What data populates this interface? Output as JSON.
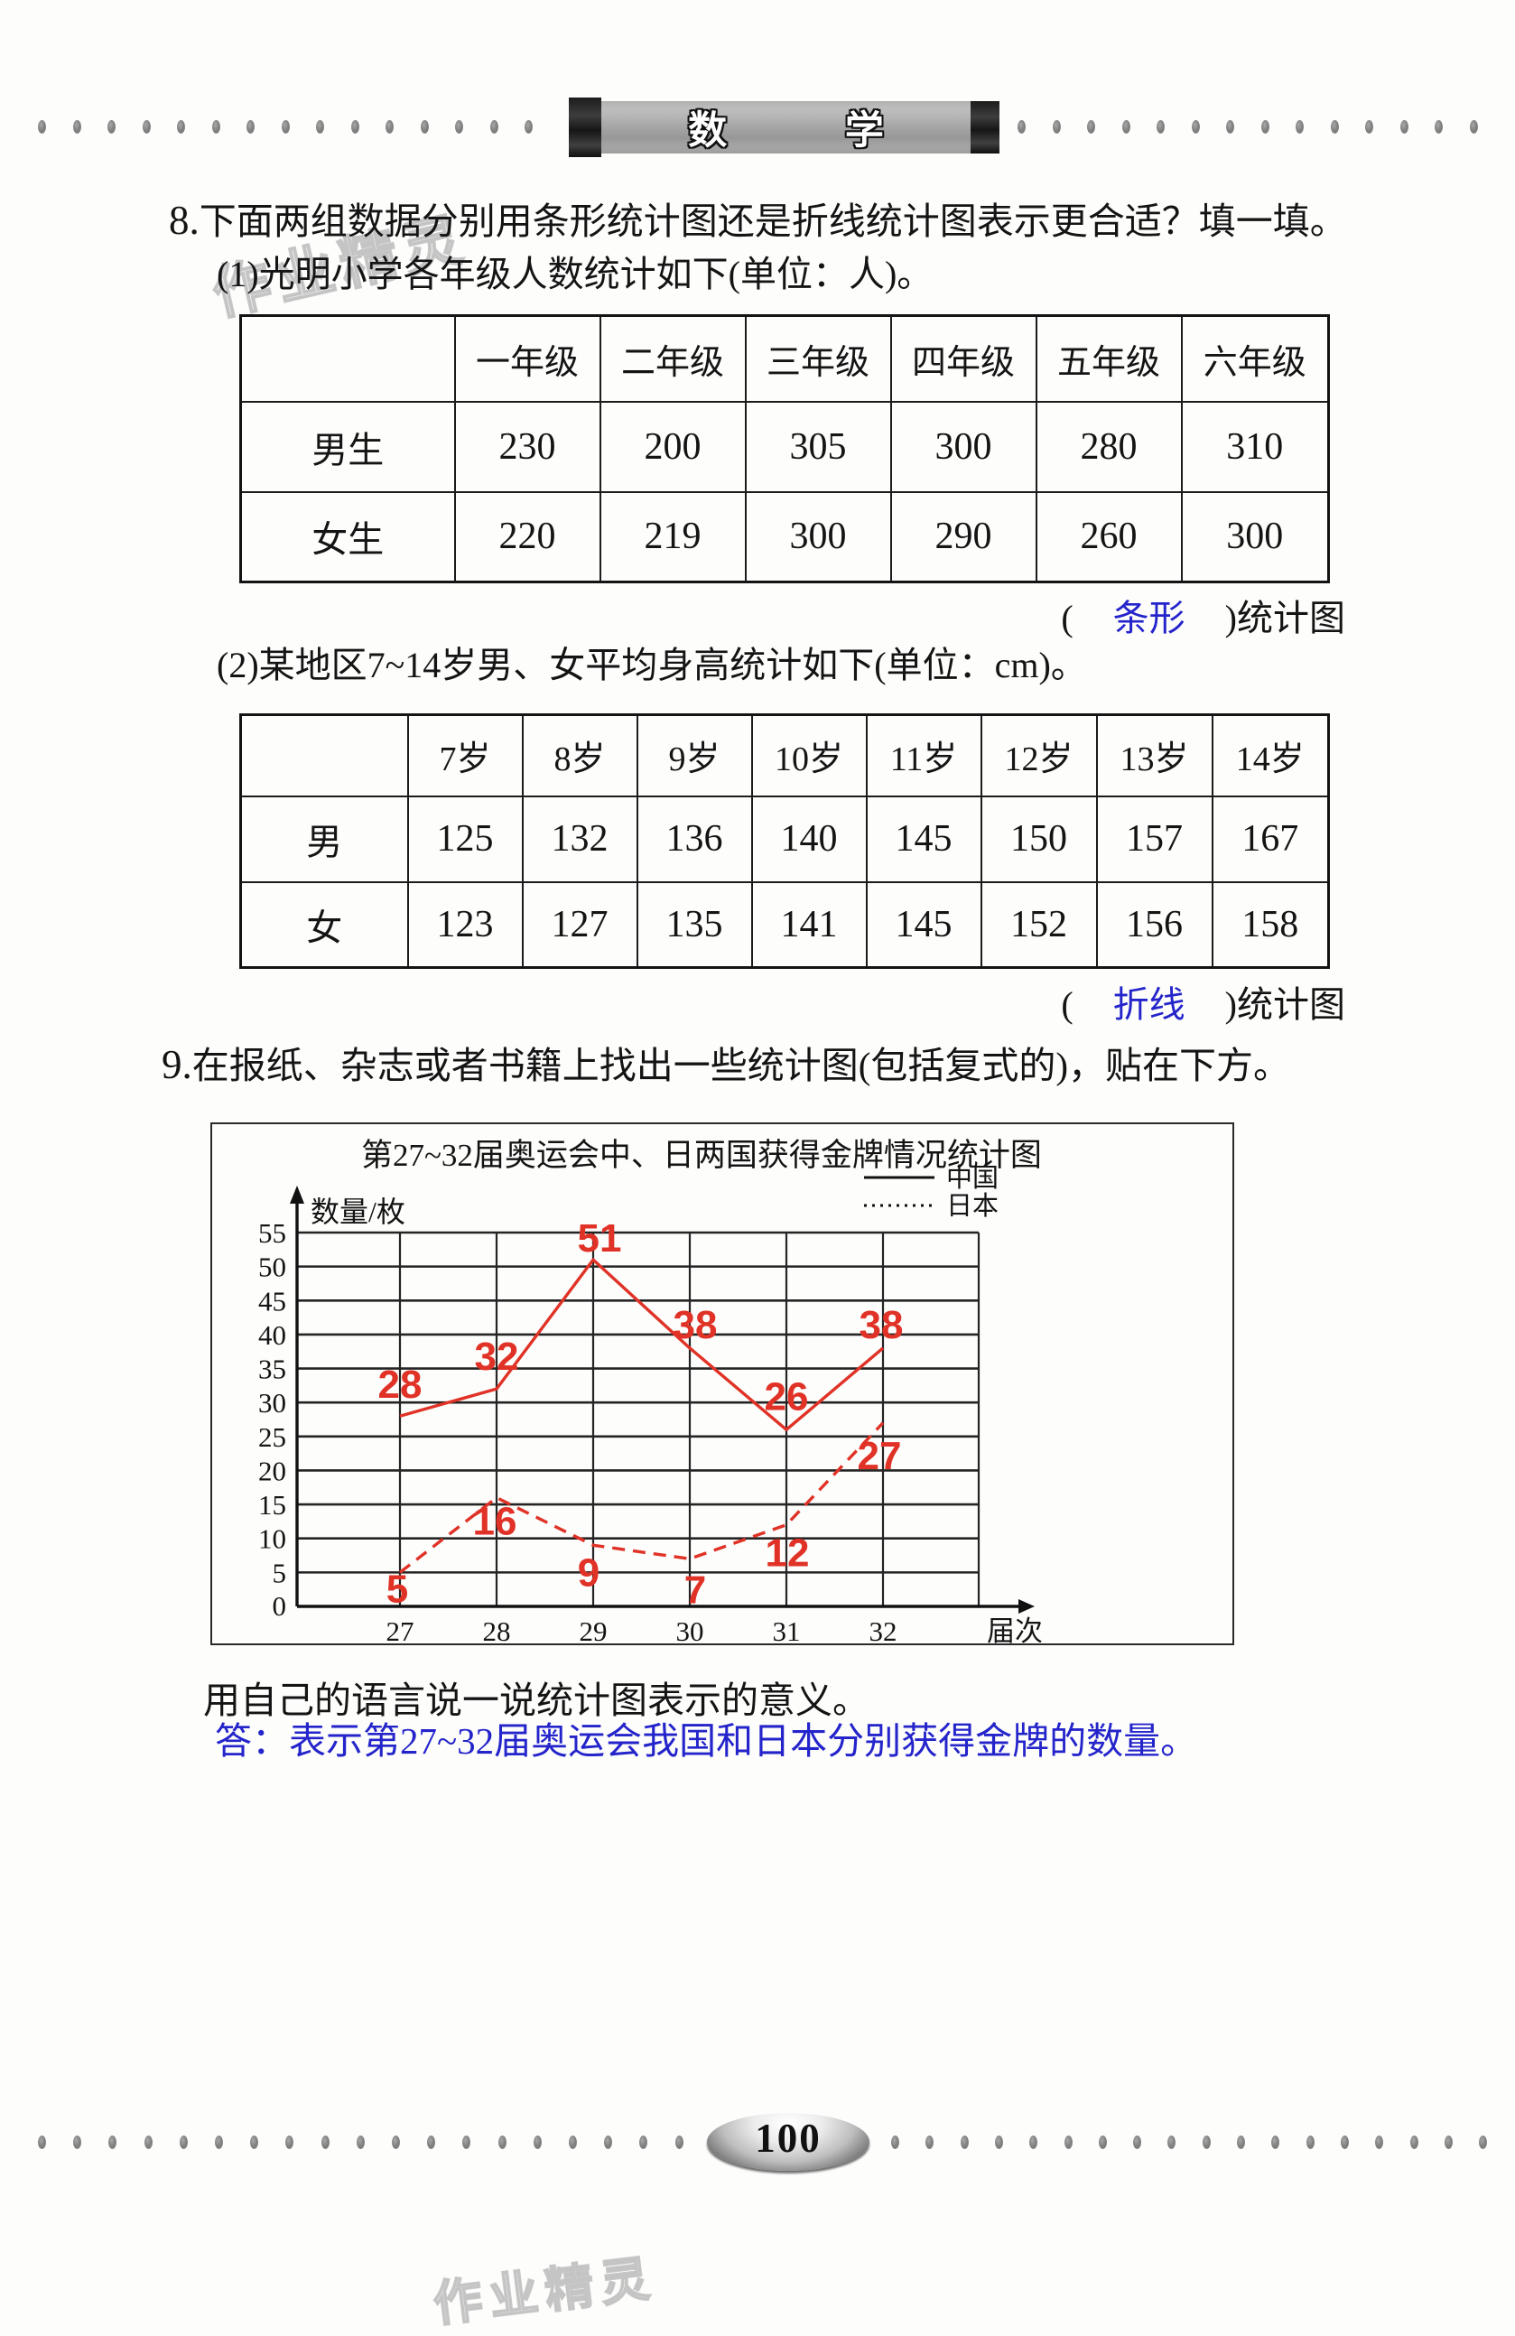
{
  "banner": {
    "title": "数 学"
  },
  "watermark": "作业精灵",
  "q8": {
    "number": "8.",
    "text": "下面两组数据分别用条形统计图还是折线统计图表示更合适？填一填。",
    "part1": {
      "label": "(1)",
      "text": "光明小学各年级人数统计如下(单位：人)。",
      "table": {
        "columns": [
          "一年级",
          "二年级",
          "三年级",
          "四年级",
          "五年级",
          "六年级"
        ],
        "rows": [
          {
            "label": "男生",
            "values": [
              "230",
              "200",
              "305",
              "300",
              "280",
              "310"
            ]
          },
          {
            "label": "女生",
            "values": [
              "220",
              "219",
              "300",
              "290",
              "260",
              "300"
            ]
          }
        ]
      },
      "answer": {
        "open": "(",
        "value": "条形",
        "close": ")",
        "suffix": "统计图"
      }
    },
    "part2": {
      "label": "(2)",
      "text": "某地区7~14岁男、女平均身高统计如下(单位：cm)。",
      "table": {
        "columns": [
          "7岁",
          "8岁",
          "9岁",
          "10岁",
          "11岁",
          "12岁",
          "13岁",
          "14岁"
        ],
        "rows": [
          {
            "label": "男",
            "values": [
              "125",
              "132",
              "136",
              "140",
              "145",
              "150",
              "157",
              "167"
            ]
          },
          {
            "label": "女",
            "values": [
              "123",
              "127",
              "135",
              "141",
              "145",
              "152",
              "156",
              "158"
            ]
          }
        ]
      },
      "answer": {
        "open": "(",
        "value": "折线",
        "close": ")",
        "suffix": "统计图"
      }
    }
  },
  "q9": {
    "number": "9.",
    "text": "在报纸、杂志或者书籍上找出一些统计图(包括复式的)，贴在下方。",
    "prompt": "用自己的语言说一说统计图表示的意义。",
    "answer": "答：表示第27~32届奥运会我国和日本分别获得金牌的数量。"
  },
  "chart_data": {
    "type": "line",
    "title": "第27~32届奥运会中、日两国获得金牌情况统计图",
    "xlabel": "届次",
    "ylabel": "数量/枚",
    "categories": [
      "27",
      "28",
      "29",
      "30",
      "31",
      "32"
    ],
    "ylim": [
      0,
      55
    ],
    "ytick_step": 5,
    "grid": true,
    "legend_position": "top-right",
    "series": [
      {
        "name": "中国",
        "style": "solid",
        "color": "#e03226",
        "values": [
          28,
          32,
          51,
          38,
          26,
          38
        ]
      },
      {
        "name": "日本",
        "style": "dashed",
        "color": "#e03226",
        "values": [
          5,
          16,
          9,
          7,
          12,
          27
        ]
      }
    ]
  },
  "footer": {
    "page_number": "100"
  }
}
